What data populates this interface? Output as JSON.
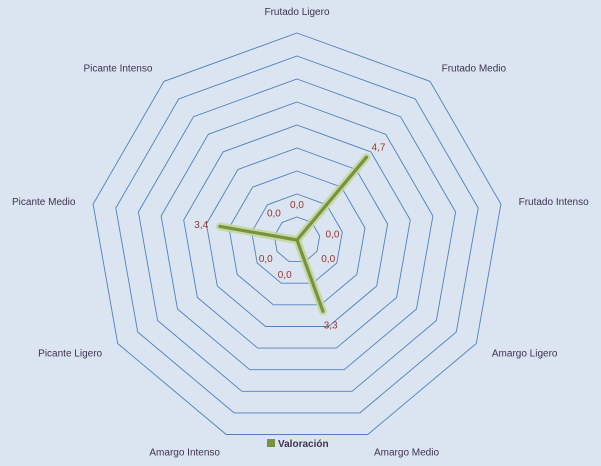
{
  "chart_data": {
    "type": "radar",
    "categories": [
      "Frutado Ligero",
      "Frutado Medio",
      "Frutado Intenso",
      "Amargo Ligero",
      "Amargo Medio",
      "Amargo Intenso",
      "Picante Ligero",
      "Picante Medio",
      "Picante Intenso"
    ],
    "series": [
      {
        "name": "Valoración",
        "values": [
          0.0,
          4.7,
          0.0,
          0.0,
          3.3,
          0.0,
          0.0,
          3.4,
          0.0
        ],
        "labels": [
          "0,0",
          "4,7",
          "0,0",
          "0,0",
          "3,3",
          "0,0",
          "0,0",
          "3,4",
          "0,0"
        ],
        "color": "#77933c"
      }
    ],
    "rlim": [
      0,
      9
    ],
    "ring_step": 1,
    "grid": true,
    "grid_color": "#4f81bd",
    "legend": "bottom",
    "background": "#dbe5f1"
  }
}
